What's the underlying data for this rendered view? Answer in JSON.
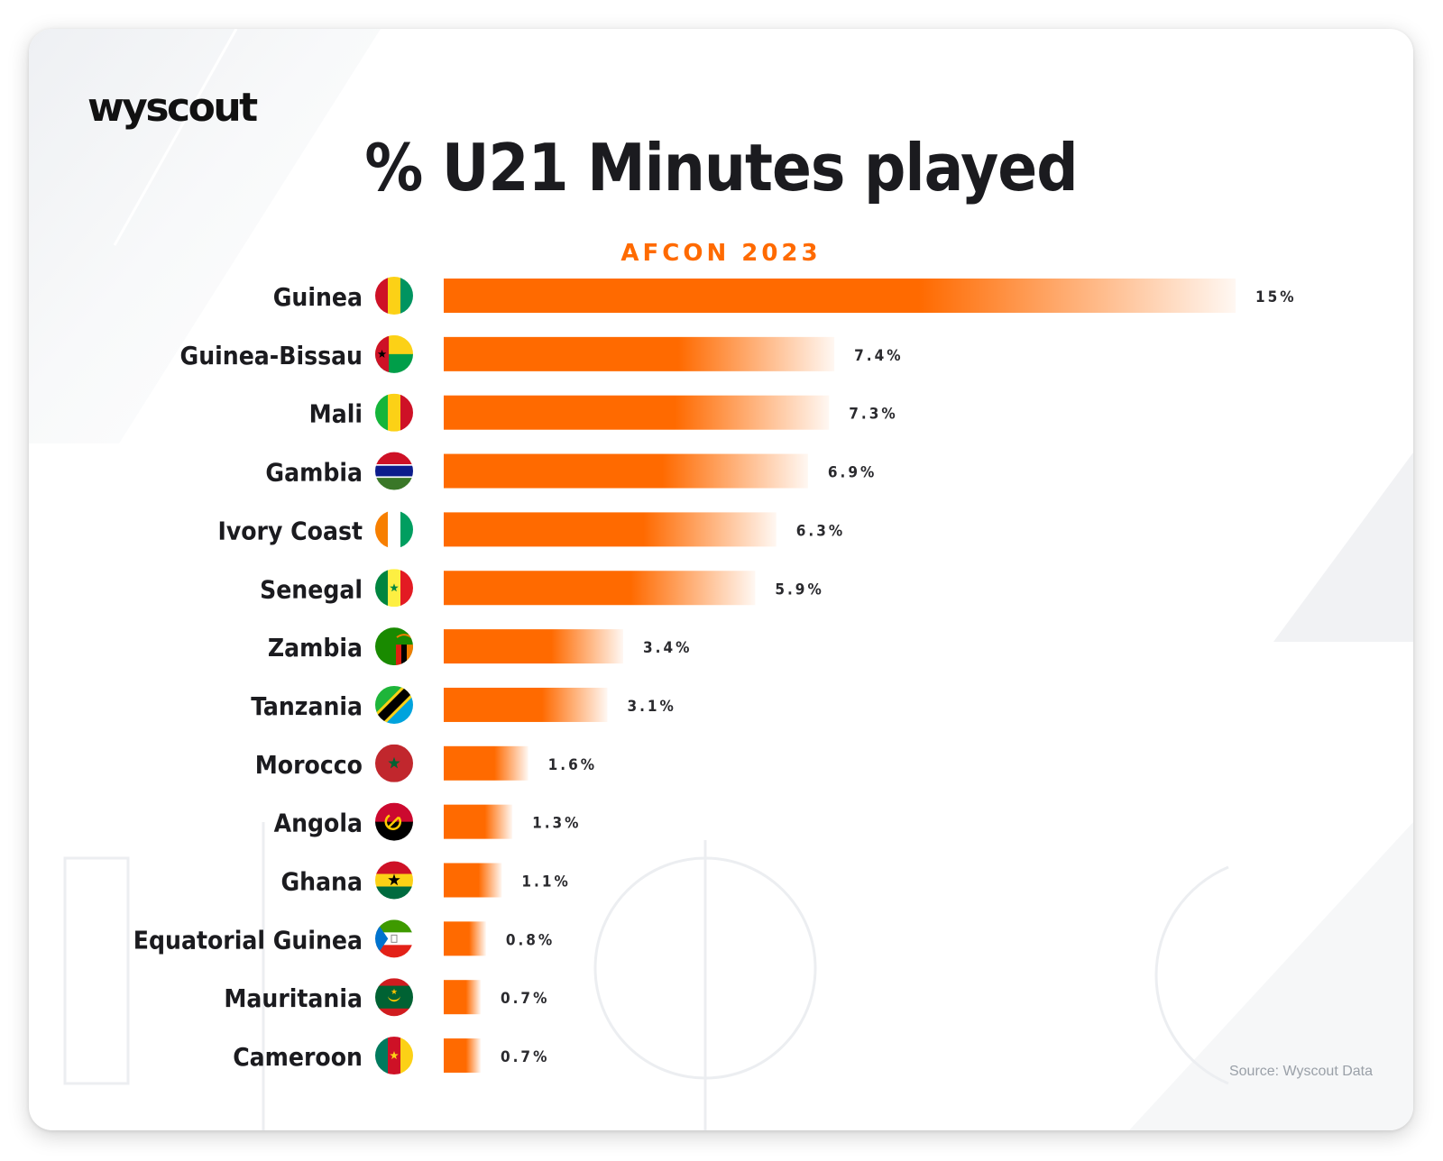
{
  "brand": {
    "logo_text": "wyscout"
  },
  "header": {
    "title": "% U21 Minutes played",
    "subtitle": "AFCON 2023"
  },
  "footer": {
    "source": "Source: Wyscout Data"
  },
  "colors": {
    "bar": "#ff6a00",
    "text": "#1b1b1f",
    "accent": "#ff6a00"
  },
  "chart_data": {
    "type": "bar",
    "orientation": "horizontal",
    "title": "% U21 Minutes played",
    "subtitle": "AFCON 2023",
    "categories": [
      "Guinea",
      "Guinea-Bissau",
      "Mali",
      "Gambia",
      "Ivory Coast",
      "Senegal",
      "Zambia",
      "Tanzania",
      "Morocco",
      "Angola",
      "Ghana",
      "Equatorial Guinea",
      "Mauritania",
      "Cameroon"
    ],
    "values": [
      15,
      7.4,
      7.3,
      6.9,
      6.3,
      5.9,
      3.4,
      3.1,
      1.6,
      1.3,
      1.1,
      0.8,
      0.7,
      0.7
    ],
    "value_labels": [
      "15%",
      "7.4%",
      "7.3%",
      "6.9%",
      "6.3%",
      "5.9%",
      "3.4%",
      "3.1%",
      "1.6%",
      "1.3%",
      "1.1%",
      "0.8%",
      "0.7%",
      "0.7%"
    ],
    "flags": [
      "guinea-flag-icon",
      "guinea-bissau-flag-icon",
      "mali-flag-icon",
      "gambia-flag-icon",
      "ivory-coast-flag-icon",
      "senegal-flag-icon",
      "zambia-flag-icon",
      "tanzania-flag-icon",
      "morocco-flag-icon",
      "angola-flag-icon",
      "ghana-flag-icon",
      "equatorial-guinea-flag-icon",
      "mauritania-flag-icon",
      "cameroon-flag-icon"
    ],
    "xlim": [
      0,
      15
    ],
    "unit": "%",
    "grid": false,
    "legend": "none",
    "xlabel": "",
    "ylabel": ""
  }
}
